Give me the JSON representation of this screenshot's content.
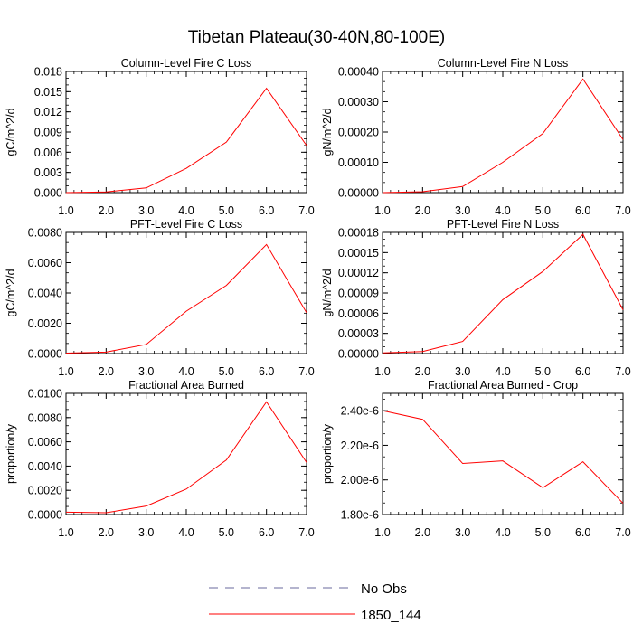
{
  "title": "Tibetan Plateau(30-40N,80-100E)",
  "legend": {
    "placement": "bottom-center",
    "items": [
      {
        "label": "No Obs",
        "color": "#6a6a9e",
        "dash": "dashed"
      },
      {
        "label": "1850_144",
        "color": "#ff0000",
        "dash": "solid"
      }
    ]
  },
  "chart_data": [
    {
      "type": "line",
      "title": "Column-Level Fire C Loss",
      "ylabel": "gC/m^2/d",
      "xlabel": "",
      "x": [
        1,
        2,
        3,
        4,
        5,
        6,
        7
      ],
      "xticks": [
        "1.0",
        "2.0",
        "3.0",
        "4.0",
        "5.0",
        "6.0",
        "7.0"
      ],
      "ylim": [
        0,
        0.018
      ],
      "yticks": [
        0,
        0.003,
        0.006,
        0.009,
        0.012,
        0.015,
        0.018
      ],
      "yticklabels": [
        "0.000",
        "0.003",
        "0.006",
        "0.009",
        "0.012",
        "0.015",
        "0.018"
      ],
      "series": [
        {
          "name": "1850_144",
          "color": "#ff0000",
          "values": [
            0.0,
            0.0001,
            0.0007,
            0.0036,
            0.0075,
            0.0155,
            0.007
          ]
        }
      ]
    },
    {
      "type": "line",
      "title": "Column-Level Fire N Loss",
      "ylabel": "gN/m^2/d",
      "xlabel": "",
      "x": [
        1,
        2,
        3,
        4,
        5,
        6,
        7
      ],
      "xticks": [
        "1.0",
        "2.0",
        "3.0",
        "4.0",
        "5.0",
        "6.0",
        "7.0"
      ],
      "ylim": [
        0,
        0.0004
      ],
      "yticks": [
        0,
        0.0001,
        0.0002,
        0.0003,
        0.0004
      ],
      "yticklabels": [
        "0.00000",
        "0.00010",
        "0.00020",
        "0.00030",
        "0.00040"
      ],
      "series": [
        {
          "name": "1850_144",
          "color": "#ff0000",
          "values": [
            0.0,
            3e-06,
            2e-05,
            0.0001,
            0.000195,
            0.000375,
            0.000175
          ]
        }
      ]
    },
    {
      "type": "line",
      "title": "PFT-Level Fire C Loss",
      "ylabel": "gC/m^2/d",
      "xlabel": "",
      "x": [
        1,
        2,
        3,
        4,
        5,
        6,
        7
      ],
      "xticks": [
        "1.0",
        "2.0",
        "3.0",
        "4.0",
        "5.0",
        "6.0",
        "7.0"
      ],
      "ylim": [
        0,
        0.008
      ],
      "yticks": [
        0,
        0.002,
        0.004,
        0.006,
        0.008
      ],
      "yticklabels": [
        "0.0000",
        "0.0020",
        "0.0040",
        "0.0060",
        "0.0080"
      ],
      "series": [
        {
          "name": "1850_144",
          "color": "#ff0000",
          "values": [
            3e-05,
            0.0001,
            0.0006,
            0.0028,
            0.0045,
            0.0072,
            0.0027
          ]
        }
      ]
    },
    {
      "type": "line",
      "title": "PFT-Level Fire N Loss",
      "ylabel": "gN/m^2/d",
      "xlabel": "",
      "x": [
        1,
        2,
        3,
        4,
        5,
        6,
        7
      ],
      "xticks": [
        "1.0",
        "2.0",
        "3.0",
        "4.0",
        "5.0",
        "6.0",
        "7.0"
      ],
      "ylim": [
        0,
        0.00018
      ],
      "yticks": [
        0,
        3e-05,
        6e-05,
        9e-05,
        0.00012,
        0.00015,
        0.00018
      ],
      "yticklabels": [
        "0.00000",
        "0.00003",
        "0.00006",
        "0.00009",
        "0.00012",
        "0.00015",
        "0.00018"
      ],
      "series": [
        {
          "name": "1850_144",
          "color": "#ff0000",
          "values": [
            1e-06,
            3e-06,
            1.8e-05,
            8e-05,
            0.000122,
            0.000177,
            6.5e-05
          ]
        }
      ]
    },
    {
      "type": "line",
      "title": "Fractional Area Burned",
      "ylabel": "proportion/y",
      "xlabel": "",
      "x": [
        1,
        2,
        3,
        4,
        5,
        6,
        7
      ],
      "xticks": [
        "1.0",
        "2.0",
        "3.0",
        "4.0",
        "5.0",
        "6.0",
        "7.0"
      ],
      "ylim": [
        0,
        0.01
      ],
      "yticks": [
        0,
        0.002,
        0.004,
        0.006,
        0.008,
        0.01
      ],
      "yticklabels": [
        "0.0000",
        "0.0020",
        "0.0040",
        "0.0060",
        "0.0080",
        "0.0100"
      ],
      "series": [
        {
          "name": "1850_144",
          "color": "#ff0000",
          "values": [
            0.0002,
            0.00015,
            0.0007,
            0.0021,
            0.0045,
            0.0093,
            0.0043
          ]
        }
      ]
    },
    {
      "type": "line",
      "title": "Fractional Area Burned - Crop",
      "ylabel": "proportion/y",
      "xlabel": "",
      "x": [
        1,
        2,
        3,
        4,
        5,
        6,
        7
      ],
      "xticks": [
        "1.0",
        "2.0",
        "3.0",
        "4.0",
        "5.0",
        "6.0",
        "7.0"
      ],
      "ylim": [
        1.8e-06,
        2.5e-06
      ],
      "yticks": [
        1.8e-06,
        2e-06,
        2.2e-06,
        2.4e-06
      ],
      "yticklabels": [
        "1.80e-6",
        "2.00e-6",
        "2.20e-6",
        "2.40e-6"
      ],
      "series": [
        {
          "name": "1850_144",
          "color": "#ff0000",
          "values": [
            2.4e-06,
            2.35e-06,
            2.095e-06,
            2.11e-06,
            1.955e-06,
            2.105e-06,
            1.865e-06
          ]
        }
      ]
    }
  ]
}
